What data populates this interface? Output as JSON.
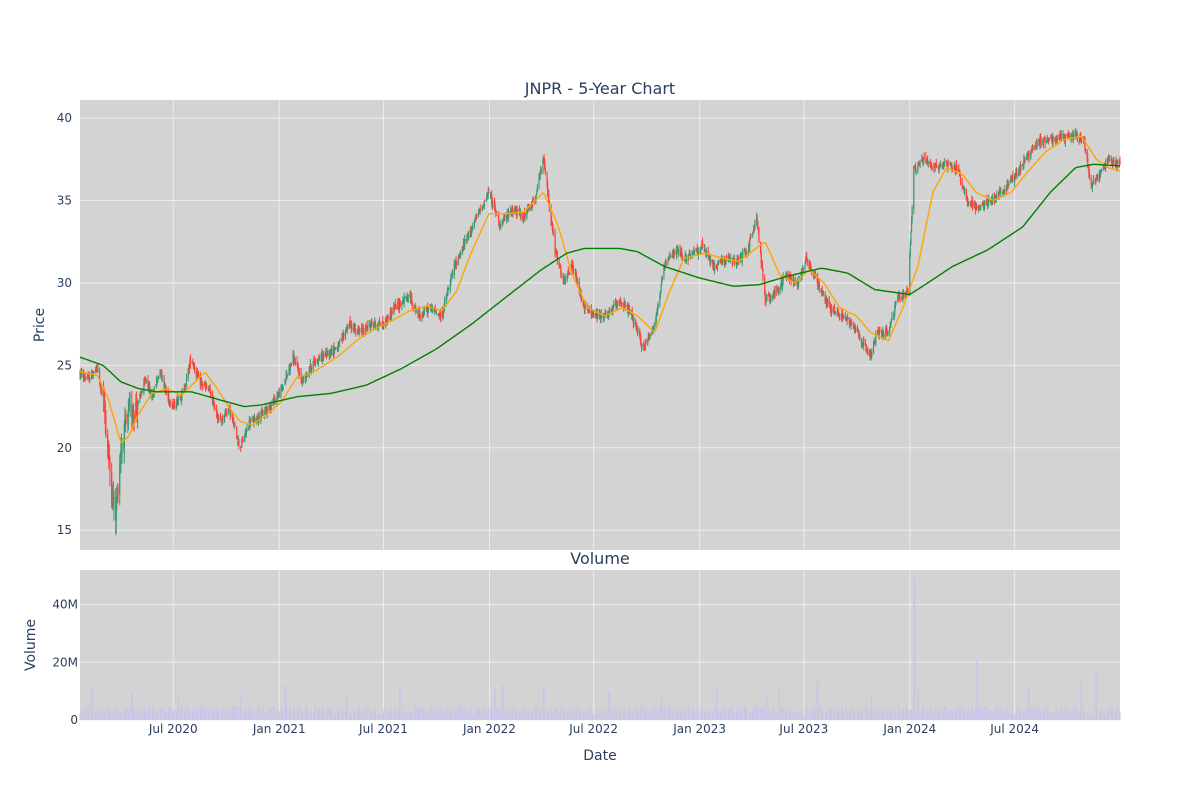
{
  "chart_data": [
    {
      "type": "candlestick",
      "title": "JNPR - 5-Year Chart",
      "xlabel": "",
      "ylabel": "Price",
      "x_range": [
        "2020-01-21",
        "2024-12-31"
      ],
      "ylim": [
        13.8,
        41.1
      ],
      "y_ticks": [
        15,
        20,
        25,
        30,
        35,
        40
      ],
      "grid": true,
      "legend": "none",
      "colors": {
        "plot_bg": "#d3d3d3",
        "gridline": "#ececec",
        "increasing": "#3d9970",
        "decreasing": "#ff4136",
        "ma_short": "#ffa500",
        "ma_long": "#008000"
      },
      "price_path": [
        [
          "2020-01-21",
          24.5
        ],
        [
          "2020-02-05",
          24.2
        ],
        [
          "2020-02-20",
          24.8
        ],
        [
          "2020-03-03",
          22.5
        ],
        [
          "2020-03-17",
          17.0
        ],
        [
          "2020-03-23",
          16.0
        ],
        [
          "2020-04-01",
          20.0
        ],
        [
          "2020-04-15",
          22.0
        ],
        [
          "2020-05-01",
          22.7
        ],
        [
          "2020-05-15",
          24.2
        ],
        [
          "2020-05-25",
          23.0
        ],
        [
          "2020-06-08",
          24.8
        ],
        [
          "2020-06-20",
          23.2
        ],
        [
          "2020-07-01",
          22.5
        ],
        [
          "2020-07-20",
          23.5
        ],
        [
          "2020-08-01",
          25.5
        ],
        [
          "2020-08-15",
          24.0
        ],
        [
          "2020-09-01",
          23.5
        ],
        [
          "2020-09-20",
          21.5
        ],
        [
          "2020-10-05",
          22.5
        ],
        [
          "2020-10-25",
          20.0
        ],
        [
          "2020-11-10",
          21.5
        ],
        [
          "2020-12-01",
          22.0
        ],
        [
          "2020-12-15",
          22.5
        ],
        [
          "2021-01-05",
          23.5
        ],
        [
          "2021-01-25",
          25.5
        ],
        [
          "2021-02-10",
          24.0
        ],
        [
          "2021-03-01",
          25.2
        ],
        [
          "2021-03-20",
          25.6
        ],
        [
          "2021-04-15",
          26.2
        ],
        [
          "2021-05-01",
          27.5
        ],
        [
          "2021-05-20",
          27.0
        ],
        [
          "2021-06-10",
          27.5
        ],
        [
          "2021-07-01",
          27.5
        ],
        [
          "2021-07-20",
          28.5
        ],
        [
          "2021-08-15",
          29.2
        ],
        [
          "2021-09-01",
          28.0
        ],
        [
          "2021-09-20",
          28.5
        ],
        [
          "2021-10-10",
          28.0
        ],
        [
          "2021-11-01",
          31.0
        ],
        [
          "2021-11-20",
          32.5
        ],
        [
          "2021-12-10",
          34.0
        ],
        [
          "2021-12-31",
          35.5
        ],
        [
          "2022-01-20",
          33.5
        ],
        [
          "2022-02-10",
          34.5
        ],
        [
          "2022-03-01",
          34.0
        ],
        [
          "2022-03-20",
          35.0
        ],
        [
          "2022-04-05",
          37.5
        ],
        [
          "2022-04-25",
          32.0
        ],
        [
          "2022-05-10",
          30.0
        ],
        [
          "2022-05-25",
          31.0
        ],
        [
          "2022-06-15",
          28.5
        ],
        [
          "2022-07-05",
          28.0
        ],
        [
          "2022-07-25",
          28.0
        ],
        [
          "2022-08-15",
          29.0
        ],
        [
          "2022-09-05",
          28.0
        ],
        [
          "2022-09-25",
          26.0
        ],
        [
          "2022-10-15",
          27.5
        ],
        [
          "2022-11-01",
          31.0
        ],
        [
          "2022-11-20",
          32.0
        ],
        [
          "2022-12-10",
          31.5
        ],
        [
          "2023-01-05",
          32.2
        ],
        [
          "2023-01-25",
          31.0
        ],
        [
          "2023-02-15",
          31.5
        ],
        [
          "2023-03-05",
          31.2
        ],
        [
          "2023-03-25",
          32.0
        ],
        [
          "2023-04-10",
          34.0
        ],
        [
          "2023-04-25",
          29.0
        ],
        [
          "2023-05-15",
          29.5
        ],
        [
          "2023-06-01",
          30.5
        ],
        [
          "2023-06-20",
          30.0
        ],
        [
          "2023-07-05",
          31.5
        ],
        [
          "2023-07-25",
          30.0
        ],
        [
          "2023-08-15",
          28.5
        ],
        [
          "2023-09-05",
          28.0
        ],
        [
          "2023-09-25",
          27.5
        ],
        [
          "2023-10-10",
          26.5
        ],
        [
          "2023-10-25",
          25.5
        ],
        [
          "2023-11-05",
          27.0
        ],
        [
          "2023-11-25",
          27.0
        ],
        [
          "2023-12-10",
          29.0
        ],
        [
          "2023-12-29",
          29.5
        ],
        [
          "2024-01-08",
          36.8
        ],
        [
          "2024-01-25",
          37.5
        ],
        [
          "2024-02-15",
          37.0
        ],
        [
          "2024-03-05",
          37.3
        ],
        [
          "2024-03-25",
          36.8
        ],
        [
          "2024-04-10",
          35.0
        ],
        [
          "2024-04-30",
          34.5
        ],
        [
          "2024-05-20",
          35.0
        ],
        [
          "2024-06-10",
          35.5
        ],
        [
          "2024-07-01",
          36.5
        ],
        [
          "2024-07-20",
          37.5
        ],
        [
          "2024-08-10",
          38.5
        ],
        [
          "2024-09-01",
          38.8
        ],
        [
          "2024-09-25",
          38.8
        ],
        [
          "2024-10-15",
          39.0
        ],
        [
          "2024-10-30",
          38.5
        ],
        [
          "2024-11-10",
          36.0
        ],
        [
          "2024-11-25",
          36.5
        ],
        [
          "2024-12-10",
          37.5
        ],
        [
          "2024-12-31",
          37.2
        ]
      ],
      "ma_short_path": [
        [
          "2020-01-21",
          24.6
        ],
        [
          "2020-02-20",
          24.4
        ],
        [
          "2020-03-10",
          23.0
        ],
        [
          "2020-04-01",
          20.3
        ],
        [
          "2020-04-15",
          20.7
        ],
        [
          "2020-05-01",
          22.0
        ],
        [
          "2020-05-25",
          23.3
        ],
        [
          "2020-06-20",
          23.6
        ],
        [
          "2020-07-15",
          23.2
        ],
        [
          "2020-08-05",
          23.9
        ],
        [
          "2020-08-25",
          24.6
        ],
        [
          "2020-09-15",
          23.6
        ],
        [
          "2020-10-05",
          22.5
        ],
        [
          "2020-10-25",
          21.6
        ],
        [
          "2020-11-15",
          21.4
        ],
        [
          "2020-12-10",
          22.0
        ],
        [
          "2021-01-05",
          22.8
        ],
        [
          "2021-02-01",
          24.3
        ],
        [
          "2021-02-25",
          24.5
        ],
        [
          "2021-03-20",
          25.0
        ],
        [
          "2021-04-15",
          25.6
        ],
        [
          "2021-05-15",
          26.5
        ],
        [
          "2021-06-15",
          27.2
        ],
        [
          "2021-07-15",
          27.7
        ],
        [
          "2021-08-15",
          28.3
        ],
        [
          "2021-09-15",
          28.6
        ],
        [
          "2021-10-10",
          28.3
        ],
        [
          "2021-11-05",
          29.5
        ],
        [
          "2021-11-30",
          31.8
        ],
        [
          "2021-12-31",
          34.2
        ],
        [
          "2022-01-30",
          34.2
        ],
        [
          "2022-03-01",
          34.3
        ],
        [
          "2022-04-05",
          35.5
        ],
        [
          "2022-04-30",
          33.5
        ],
        [
          "2022-05-25",
          30.5
        ],
        [
          "2022-06-20",
          28.5
        ],
        [
          "2022-07-20",
          28.0
        ],
        [
          "2022-08-20",
          28.5
        ],
        [
          "2022-09-15",
          28.0
        ],
        [
          "2022-10-15",
          27.0
        ],
        [
          "2022-11-10",
          29.5
        ],
        [
          "2022-12-05",
          31.5
        ],
        [
          "2023-01-10",
          31.8
        ],
        [
          "2023-02-10",
          31.5
        ],
        [
          "2023-03-10",
          31.3
        ],
        [
          "2023-04-05",
          32.0
        ],
        [
          "2023-04-25",
          32.5
        ],
        [
          "2023-05-20",
          30.5
        ],
        [
          "2023-06-15",
          30.0
        ],
        [
          "2023-07-10",
          30.8
        ],
        [
          "2023-08-05",
          30.0
        ],
        [
          "2023-09-01",
          28.5
        ],
        [
          "2023-09-30",
          28.0
        ],
        [
          "2023-10-25",
          27.0
        ],
        [
          "2023-11-25",
          26.5
        ],
        [
          "2023-12-20",
          28.5
        ],
        [
          "2024-01-15",
          31.0
        ],
        [
          "2024-02-10",
          35.5
        ],
        [
          "2024-03-05",
          37.0
        ],
        [
          "2024-04-01",
          36.6
        ],
        [
          "2024-04-25",
          35.5
        ],
        [
          "2024-05-25",
          35.0
        ],
        [
          "2024-06-25",
          35.5
        ],
        [
          "2024-07-25",
          36.8
        ],
        [
          "2024-08-25",
          38.0
        ],
        [
          "2024-09-25",
          38.7
        ],
        [
          "2024-10-25",
          38.9
        ],
        [
          "2024-11-20",
          37.5
        ],
        [
          "2024-12-10",
          37.0
        ],
        [
          "2024-12-31",
          36.8
        ]
      ],
      "ma_long_path": [
        [
          "2020-01-21",
          25.5
        ],
        [
          "2020-03-01",
          25.0
        ],
        [
          "2020-04-01",
          24.0
        ],
        [
          "2020-05-01",
          23.6
        ],
        [
          "2020-06-01",
          23.4
        ],
        [
          "2020-08-01",
          23.4
        ],
        [
          "2020-10-01",
          22.8
        ],
        [
          "2020-11-01",
          22.5
        ],
        [
          "2020-12-01",
          22.6
        ],
        [
          "2021-02-01",
          23.1
        ],
        [
          "2021-04-01",
          23.3
        ],
        [
          "2021-06-01",
          23.8
        ],
        [
          "2021-08-01",
          24.8
        ],
        [
          "2021-10-01",
          26.0
        ],
        [
          "2021-12-01",
          27.5
        ],
        [
          "2022-02-01",
          29.2
        ],
        [
          "2022-04-01",
          30.8
        ],
        [
          "2022-05-15",
          31.8
        ],
        [
          "2022-06-15",
          32.1
        ],
        [
          "2022-08-15",
          32.1
        ],
        [
          "2022-09-15",
          31.9
        ],
        [
          "2022-11-01",
          31.0
        ],
        [
          "2023-01-01",
          30.3
        ],
        [
          "2023-03-01",
          29.8
        ],
        [
          "2023-04-15",
          29.9
        ],
        [
          "2023-06-01",
          30.4
        ],
        [
          "2023-08-01",
          30.9
        ],
        [
          "2023-09-15",
          30.6
        ],
        [
          "2023-11-01",
          29.6
        ],
        [
          "2024-01-01",
          29.3
        ],
        [
          "2024-02-01",
          30.0
        ],
        [
          "2024-03-15",
          31.0
        ],
        [
          "2024-05-15",
          32.0
        ],
        [
          "2024-07-15",
          33.4
        ],
        [
          "2024-09-01",
          35.5
        ],
        [
          "2024-10-15",
          37.0
        ],
        [
          "2024-11-15",
          37.2
        ],
        [
          "2024-12-31",
          37.1
        ]
      ]
    },
    {
      "type": "bar",
      "title": "Volume",
      "xlabel": "Date",
      "ylabel": "Volume",
      "x_range": [
        "2020-01-21",
        "2024-12-31"
      ],
      "ylim": [
        0,
        52000000
      ],
      "y_ticks": [
        {
          "value": 0,
          "label": "0"
        },
        {
          "value": 20000000,
          "label": "20M"
        },
        {
          "value": 40000000,
          "label": "40M"
        }
      ],
      "x_ticks": [
        {
          "date": "2020-07-01",
          "label": "Jul 2020"
        },
        {
          "date": "2021-01-01",
          "label": "Jan 2021"
        },
        {
          "date": "2021-07-01",
          "label": "Jul 2021"
        },
        {
          "date": "2022-01-01",
          "label": "Jan 2022"
        },
        {
          "date": "2022-07-01",
          "label": "Jul 2022"
        },
        {
          "date": "2023-01-01",
          "label": "Jan 2023"
        },
        {
          "date": "2023-07-01",
          "label": "Jul 2023"
        },
        {
          "date": "2024-01-01",
          "label": "Jan 2024"
        },
        {
          "date": "2024-07-01",
          "label": "Jul 2024"
        }
      ],
      "bar_color": "#c9c6e6",
      "typical_volume": 3500000,
      "volume_spikes": [
        [
          "2020-02-10",
          11000000
        ],
        [
          "2020-04-20",
          9500000
        ],
        [
          "2020-07-10",
          8500000
        ],
        [
          "2020-10-25",
          9500000
        ],
        [
          "2021-01-12",
          12000000
        ],
        [
          "2021-04-28",
          8500000
        ],
        [
          "2021-07-30",
          11000000
        ],
        [
          "2022-01-10",
          10500000
        ],
        [
          "2022-01-25",
          12000000
        ],
        [
          "2022-04-05",
          11500000
        ],
        [
          "2022-07-28",
          9500000
        ],
        [
          "2022-10-28",
          8000000
        ],
        [
          "2023-01-30",
          12000000
        ],
        [
          "2023-04-28",
          9000000
        ],
        [
          "2023-05-20",
          12500000
        ],
        [
          "2023-07-25",
          13500000
        ],
        [
          "2023-10-27",
          9000000
        ],
        [
          "2024-01-09",
          49000000
        ],
        [
          "2024-01-15",
          10000000
        ],
        [
          "2024-04-26",
          21000000
        ],
        [
          "2024-07-25",
          11000000
        ],
        [
          "2024-10-25",
          13500000
        ],
        [
          "2024-11-20",
          16000000
        ]
      ]
    }
  ]
}
